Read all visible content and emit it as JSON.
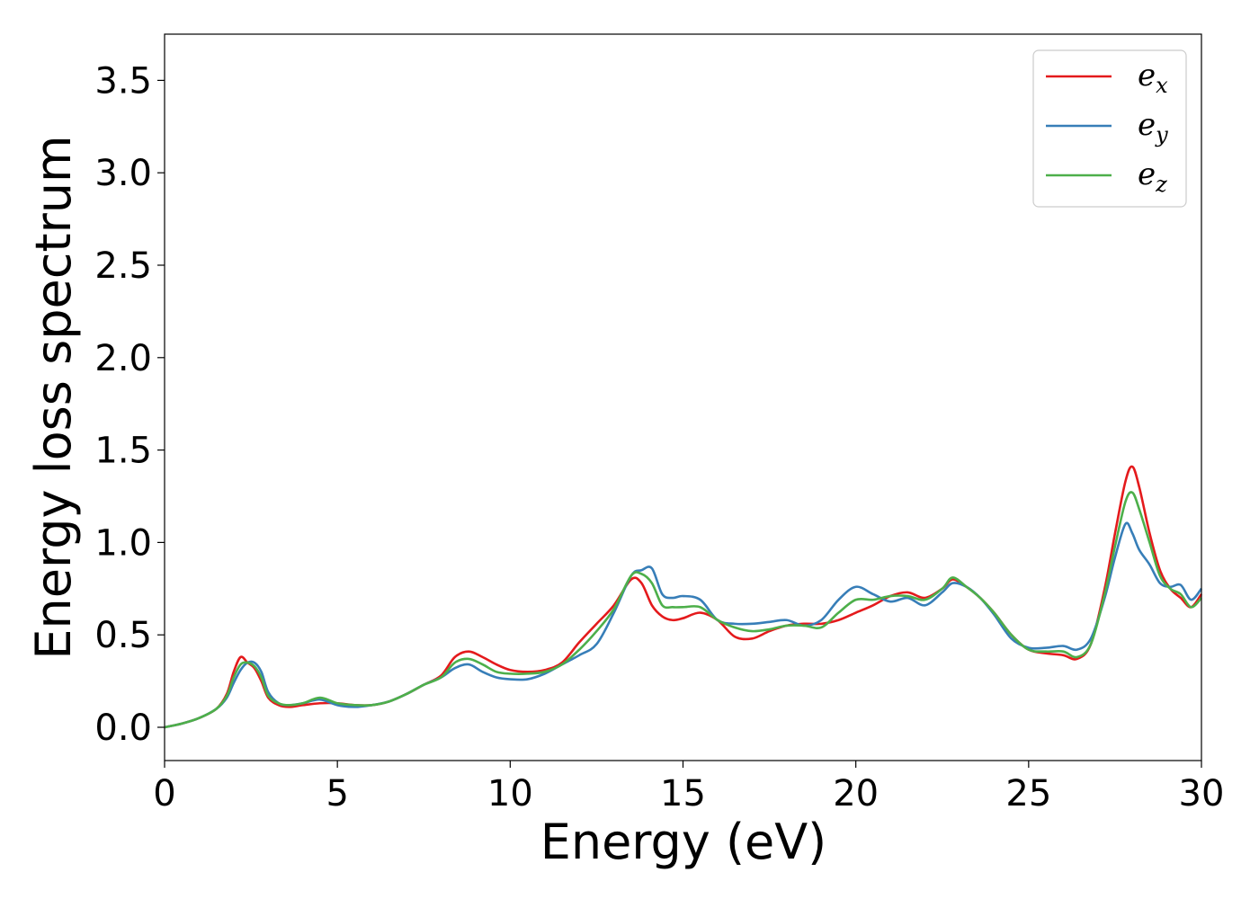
{
  "chart_data": {
    "type": "line",
    "title": "",
    "xlabel": "Energy (eV)",
    "ylabel": "Energy loss spectrum",
    "xlim": [
      0,
      30
    ],
    "ylim": [
      -0.18,
      3.75
    ],
    "xticks": [
      "0",
      "5",
      "10",
      "15",
      "20",
      "25",
      "30"
    ],
    "yticks": [
      "0.0",
      "0.5",
      "1.0",
      "1.5",
      "2.0",
      "2.5",
      "3.0",
      "3.5"
    ],
    "grid": false,
    "legend_position": "top-right",
    "series": [
      {
        "name": "e_x",
        "label_main": "e",
        "label_sub": "x",
        "color": "#e41a1c",
        "x": [
          0,
          0.5,
          1.0,
          1.5,
          1.8,
          2.0,
          2.2,
          2.4,
          2.6,
          2.8,
          3.0,
          3.3,
          3.6,
          4.0,
          4.5,
          5.0,
          5.5,
          6.0,
          6.5,
          7.0,
          7.5,
          8.0,
          8.4,
          8.8,
          9.2,
          9.6,
          10.0,
          10.5,
          11.0,
          11.5,
          12.0,
          12.5,
          13.0,
          13.5,
          13.8,
          14.1,
          14.4,
          14.7,
          15.0,
          15.5,
          16.0,
          16.5,
          17.0,
          17.5,
          18.0,
          18.5,
          19.0,
          19.5,
          20.0,
          20.5,
          21.0,
          21.5,
          22.0,
          22.5,
          22.8,
          23.2,
          23.6,
          24.0,
          24.5,
          25.0,
          25.5,
          26.0,
          26.4,
          26.8,
          27.2,
          27.5,
          27.8,
          28.0,
          28.2,
          28.5,
          28.8,
          29.1,
          29.4,
          29.7,
          30.0
        ],
        "y": [
          0.0,
          0.02,
          0.05,
          0.1,
          0.18,
          0.3,
          0.38,
          0.35,
          0.32,
          0.25,
          0.16,
          0.12,
          0.11,
          0.12,
          0.13,
          0.13,
          0.12,
          0.12,
          0.14,
          0.18,
          0.23,
          0.28,
          0.38,
          0.41,
          0.38,
          0.34,
          0.31,
          0.3,
          0.31,
          0.35,
          0.46,
          0.56,
          0.66,
          0.8,
          0.78,
          0.66,
          0.6,
          0.58,
          0.59,
          0.62,
          0.58,
          0.49,
          0.48,
          0.52,
          0.55,
          0.56,
          0.56,
          0.58,
          0.62,
          0.66,
          0.71,
          0.73,
          0.7,
          0.75,
          0.8,
          0.76,
          0.7,
          0.62,
          0.5,
          0.42,
          0.4,
          0.39,
          0.37,
          0.45,
          0.75,
          1.05,
          1.33,
          1.41,
          1.3,
          1.05,
          0.85,
          0.75,
          0.7,
          0.65,
          0.72
        ]
      },
      {
        "name": "e_y",
        "label_main": "e",
        "label_sub": "y",
        "color": "#377eb8",
        "x": [
          0,
          0.5,
          1.0,
          1.5,
          1.8,
          2.0,
          2.2,
          2.4,
          2.6,
          2.8,
          3.0,
          3.3,
          3.6,
          4.0,
          4.5,
          5.0,
          5.5,
          6.0,
          6.5,
          7.0,
          7.5,
          8.0,
          8.4,
          8.8,
          9.2,
          9.6,
          10.0,
          10.5,
          11.0,
          11.5,
          12.0,
          12.5,
          13.0,
          13.5,
          13.8,
          14.1,
          14.4,
          14.7,
          15.0,
          15.5,
          16.0,
          16.5,
          17.0,
          17.5,
          18.0,
          18.5,
          19.0,
          19.5,
          20.0,
          20.5,
          21.0,
          21.5,
          22.0,
          22.5,
          22.8,
          23.2,
          23.6,
          24.0,
          24.5,
          25.0,
          25.5,
          26.0,
          26.4,
          26.8,
          27.2,
          27.5,
          27.8,
          28.0,
          28.2,
          28.5,
          28.8,
          29.1,
          29.4,
          29.7,
          30.0
        ],
        "y": [
          0.0,
          0.02,
          0.05,
          0.1,
          0.16,
          0.24,
          0.31,
          0.35,
          0.35,
          0.3,
          0.19,
          0.13,
          0.12,
          0.13,
          0.15,
          0.12,
          0.11,
          0.12,
          0.14,
          0.18,
          0.23,
          0.27,
          0.32,
          0.34,
          0.3,
          0.27,
          0.26,
          0.26,
          0.29,
          0.34,
          0.39,
          0.45,
          0.62,
          0.82,
          0.85,
          0.86,
          0.72,
          0.7,
          0.71,
          0.69,
          0.58,
          0.56,
          0.56,
          0.57,
          0.58,
          0.55,
          0.58,
          0.69,
          0.76,
          0.72,
          0.68,
          0.7,
          0.66,
          0.73,
          0.78,
          0.76,
          0.7,
          0.61,
          0.48,
          0.43,
          0.43,
          0.44,
          0.42,
          0.48,
          0.7,
          0.92,
          1.1,
          1.05,
          0.96,
          0.88,
          0.78,
          0.76,
          0.77,
          0.69,
          0.75
        ]
      },
      {
        "name": "e_z",
        "label_main": "e",
        "label_sub": "z",
        "color": "#4daf4a",
        "x": [
          0,
          0.5,
          1.0,
          1.5,
          1.8,
          2.0,
          2.2,
          2.4,
          2.6,
          2.8,
          3.0,
          3.3,
          3.6,
          4.0,
          4.5,
          5.0,
          5.5,
          6.0,
          6.5,
          7.0,
          7.5,
          8.0,
          8.4,
          8.8,
          9.2,
          9.6,
          10.0,
          10.5,
          11.0,
          11.5,
          12.0,
          12.5,
          13.0,
          13.5,
          13.8,
          14.1,
          14.4,
          14.7,
          15.0,
          15.5,
          16.0,
          16.5,
          17.0,
          17.5,
          18.0,
          18.5,
          19.0,
          19.5,
          20.0,
          20.5,
          21.0,
          21.5,
          22.0,
          22.5,
          22.8,
          23.2,
          23.6,
          24.0,
          24.5,
          25.0,
          25.5,
          26.0,
          26.4,
          26.8,
          27.2,
          27.5,
          27.8,
          28.0,
          28.2,
          28.5,
          28.8,
          29.1,
          29.4,
          29.7,
          30.0
        ],
        "y": [
          0.0,
          0.02,
          0.05,
          0.1,
          0.17,
          0.27,
          0.34,
          0.35,
          0.33,
          0.27,
          0.17,
          0.13,
          0.12,
          0.13,
          0.16,
          0.13,
          0.12,
          0.12,
          0.14,
          0.18,
          0.23,
          0.27,
          0.35,
          0.37,
          0.34,
          0.3,
          0.29,
          0.29,
          0.3,
          0.34,
          0.42,
          0.52,
          0.64,
          0.82,
          0.83,
          0.78,
          0.66,
          0.65,
          0.65,
          0.65,
          0.58,
          0.54,
          0.52,
          0.53,
          0.55,
          0.55,
          0.54,
          0.62,
          0.69,
          0.69,
          0.71,
          0.71,
          0.69,
          0.75,
          0.81,
          0.76,
          0.7,
          0.62,
          0.5,
          0.42,
          0.41,
          0.41,
          0.38,
          0.45,
          0.72,
          0.98,
          1.22,
          1.27,
          1.18,
          1.0,
          0.82,
          0.75,
          0.72,
          0.65,
          0.7
        ]
      }
    ]
  }
}
